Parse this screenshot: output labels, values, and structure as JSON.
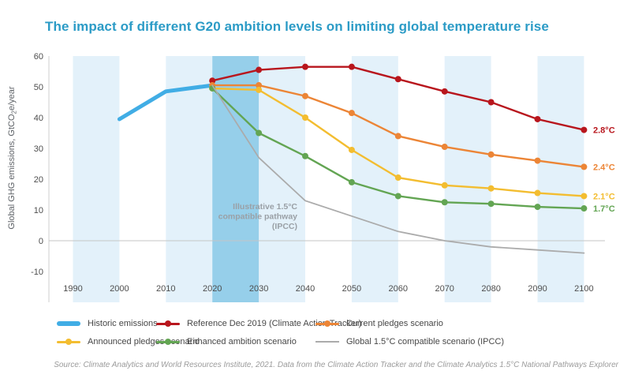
{
  "title": "The impact of different G20 ambition levels on limiting global temperature rise",
  "source": "Source: Climate Analytics and World Resources Institute, 2021. Data from the Climate Action Tracker and the Climate Analytics 1.5°C National Pathways Explorer",
  "chart_data": {
    "type": "line",
    "title": "The impact of different G20 ambition levels on limiting global temperature rise",
    "xlabel": "",
    "ylabel_parts": [
      "Global GHG emissions, GtCO",
      "2",
      "e/year"
    ],
    "x_ticks": [
      1990,
      2000,
      2010,
      2020,
      2030,
      2040,
      2050,
      2060,
      2070,
      2080,
      2090,
      2100
    ],
    "y_ticks": [
      60,
      50,
      40,
      30,
      20,
      10,
      0,
      -10
    ],
    "ylim": [
      -15,
      60
    ],
    "grid": false,
    "bands": {
      "light_decades": [
        [
          1990,
          2000
        ],
        [
          2010,
          2020
        ],
        [
          2030,
          2040
        ],
        [
          2050,
          2060
        ],
        [
          2070,
          2080
        ],
        [
          2090,
          2100
        ]
      ],
      "highlight_decade": [
        2020,
        2030
      ]
    },
    "series": [
      {
        "name": "Historic emissions",
        "style": "thick",
        "color": "#41ade5",
        "x": [
          2000,
          2010,
          2020
        ],
        "values": [
          39.5,
          48.5,
          50.5
        ]
      },
      {
        "name": "Reference Dec 2019 (Climate Action Tracker)",
        "style": "dots",
        "color": "#b8161d",
        "end_label": "2.8°C",
        "x": [
          2020,
          2030,
          2040,
          2050,
          2060,
          2070,
          2080,
          2090,
          2100
        ],
        "values": [
          52,
          55.5,
          56.5,
          56.5,
          52.5,
          48.5,
          45,
          39.5,
          36
        ]
      },
      {
        "name": "Current pledges scenario",
        "style": "dots",
        "color": "#ec8536",
        "end_label": "2.4°C",
        "x": [
          2020,
          2030,
          2040,
          2050,
          2060,
          2070,
          2080,
          2090,
          2100
        ],
        "values": [
          50.5,
          50.5,
          47,
          41.5,
          34,
          30.5,
          28,
          26,
          24
        ]
      },
      {
        "name": "Announced pledges scenario",
        "style": "dots",
        "color": "#f3bd30",
        "end_label": "2.1°C",
        "x": [
          2020,
          2030,
          2040,
          2050,
          2060,
          2070,
          2080,
          2090,
          2100
        ],
        "values": [
          49.5,
          49,
          40,
          29.5,
          20.5,
          18,
          17,
          15.5,
          14.5
        ]
      },
      {
        "name": "Enhanced ambition scenario",
        "style": "dots",
        "color": "#63a553",
        "end_label": "1.7°C",
        "x": [
          2020,
          2030,
          2040,
          2050,
          2060,
          2070,
          2080,
          2090,
          2100
        ],
        "values": [
          49.5,
          35,
          27.5,
          19,
          14.5,
          12.5,
          12,
          11,
          10.5
        ]
      },
      {
        "name": "Global 1.5°C compatible scenario (IPCC)",
        "style": "plain",
        "color": "#ababab",
        "x": [
          2020,
          2030,
          2040,
          2050,
          2060,
          2070,
          2080,
          2090,
          2100
        ],
        "values": [
          50.5,
          27,
          13,
          8,
          3,
          0,
          -2,
          -3,
          -4
        ]
      }
    ],
    "annotation": {
      "lines": [
        "Illustrative 1.5°C",
        "compatible pathway",
        "(IPCC)"
      ],
      "color": "#9aa0a6"
    },
    "colors": {
      "band_light": "#e3f1fa",
      "band_highlight": "#96cfea",
      "axis_line": "#cfcfcf",
      "zero_line": "#c6c6c6",
      "tick_text": "#4d4d4d",
      "axis_title_text": "#5f6368",
      "title_text": "#2b9bc6"
    },
    "legend_position": "bottom"
  },
  "legend": {
    "items": [
      {
        "label": "Historic emissions",
        "style": "thick",
        "color": "#41ade5"
      },
      {
        "label": "Reference Dec 2019 (Climate Action Tracker)",
        "style": "dots",
        "color": "#b8161d"
      },
      {
        "label": "Current pledges scenario",
        "style": "dots",
        "color": "#ec8536"
      },
      {
        "label": "Announced pledges scenario",
        "style": "dots",
        "color": "#f3bd30"
      },
      {
        "label": "Enhanced ambition scenario",
        "style": "dots",
        "color": "#63a553"
      },
      {
        "label": "Global 1.5°C compatible scenario (IPCC)",
        "style": "plain",
        "color": "#ababab"
      }
    ]
  }
}
